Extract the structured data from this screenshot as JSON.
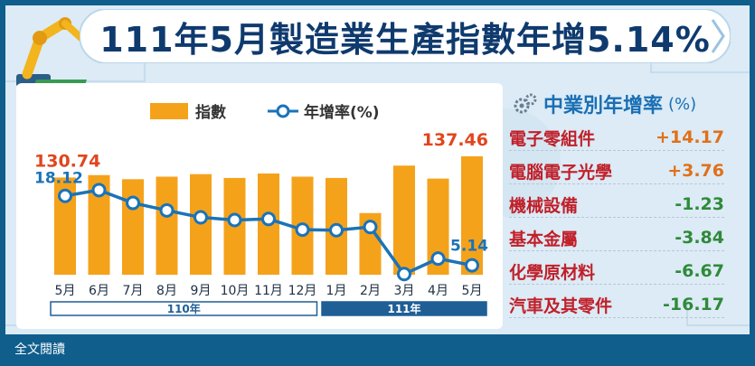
{
  "title": "111年5月製造業生產指數年增5.14%",
  "legend": {
    "bar_label": "指數",
    "line_label": "年增率(%)"
  },
  "chart_data": {
    "type": "bar",
    "categories": [
      "5月",
      "6月",
      "7月",
      "8月",
      "9月",
      "10月",
      "11月",
      "12月",
      "1月",
      "2月",
      "3月",
      "4月",
      "5月"
    ],
    "series": [
      {
        "name": "指數",
        "values": [
          130.74,
          131.5,
          130.2,
          131.0,
          131.8,
          130.6,
          132.0,
          131.0,
          130.6,
          119.5,
          134.5,
          130.4,
          137.46
        ]
      },
      {
        "name": "年增率(%)",
        "values": [
          18.12,
          19.2,
          16.8,
          15.4,
          14.1,
          13.6,
          13.8,
          11.8,
          11.7,
          12.3,
          3.5,
          6.4,
          5.14
        ]
      }
    ],
    "annotations": [
      {
        "series": "指數",
        "index": 0,
        "text": "130.74"
      },
      {
        "series": "指數",
        "index": 12,
        "text": "137.46"
      },
      {
        "series": "年增率(%)",
        "index": 0,
        "text": "18.12"
      },
      {
        "series": "年增率(%)",
        "index": 12,
        "text": "5.14"
      }
    ],
    "year_groups": [
      {
        "label": "110年",
        "from": 0,
        "to": 7
      },
      {
        "label": "111年",
        "from": 8,
        "to": 12
      }
    ],
    "colors": {
      "bar": "#f5a21b",
      "line": "#1a73b8",
      "bar_label": "#e0461f",
      "line_label": "#1a73b8"
    }
  },
  "industry": {
    "title": "中業別年增率",
    "unit": "(%)",
    "items": [
      {
        "name": "電子零組件",
        "value": "+14.17"
      },
      {
        "name": "電腦電子光學",
        "value": "+3.76"
      },
      {
        "name": "機械設備",
        "value": "-1.23"
      },
      {
        "name": "基本金屬",
        "value": "-3.84"
      },
      {
        "name": "化學原材料",
        "value": "-6.67"
      },
      {
        "name": "汽車及其零件",
        "value": "-16.17"
      }
    ],
    "colors": {
      "positive": "#e0701a",
      "negative": "#2f8a3a",
      "name": "#c0202a"
    }
  },
  "footer": {
    "full_text": "全文閱讀"
  }
}
